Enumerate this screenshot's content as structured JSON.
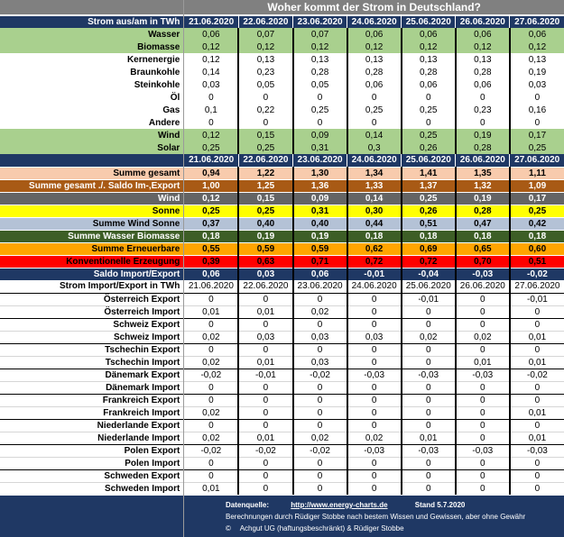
{
  "chart_data": {
    "type": "table",
    "title": "Woher kommt der Strom in Deutschland?",
    "columns": [
      "21.06.2020",
      "22.06.2020",
      "23.06.2020",
      "24.06.2020",
      "25.06.2020",
      "26.06.2020",
      "27.06.2020"
    ],
    "production": {
      "header_label": "Strom aus/am in TWh",
      "rows": [
        {
          "label": "Wasser",
          "style": "green",
          "values": [
            "0,06",
            "0,07",
            "0,07",
            "0,06",
            "0,06",
            "0,06",
            "0,06"
          ]
        },
        {
          "label": "Biomasse",
          "style": "green",
          "values": [
            "0,12",
            "0,12",
            "0,12",
            "0,12",
            "0,12",
            "0,12",
            "0,12"
          ]
        },
        {
          "label": "Kernenergie",
          "style": "white",
          "values": [
            "0,12",
            "0,13",
            "0,13",
            "0,13",
            "0,13",
            "0,13",
            "0,13"
          ]
        },
        {
          "label": "Braunkohle",
          "style": "white",
          "values": [
            "0,14",
            "0,23",
            "0,28",
            "0,28",
            "0,28",
            "0,28",
            "0,19"
          ]
        },
        {
          "label": "Steinkohle",
          "style": "white",
          "values": [
            "0,03",
            "0,05",
            "0,05",
            "0,06",
            "0,06",
            "0,06",
            "0,03"
          ]
        },
        {
          "label": "Öl",
          "style": "white",
          "values": [
            "0",
            "0",
            "0",
            "0",
            "0",
            "0",
            "0"
          ]
        },
        {
          "label": "Gas",
          "style": "white",
          "values": [
            "0,1",
            "0,22",
            "0,25",
            "0,25",
            "0,25",
            "0,23",
            "0,16"
          ]
        },
        {
          "label": "Andere",
          "style": "white",
          "values": [
            "0",
            "0",
            "0",
            "0",
            "0",
            "0",
            "0"
          ]
        },
        {
          "label": "Wind",
          "style": "green",
          "values": [
            "0,12",
            "0,15",
            "0,09",
            "0,14",
            "0,25",
            "0,19",
            "0,17"
          ]
        },
        {
          "label": "Solar",
          "style": "green",
          "values": [
            "0,25",
            "0,25",
            "0,31",
            "0,3",
            "0,26",
            "0,28",
            "0,25"
          ]
        }
      ]
    },
    "summary": {
      "rows": [
        {
          "label": "Summe gesamt",
          "style": "peach",
          "values": [
            "0,94",
            "1,22",
            "1,30",
            "1,34",
            "1,41",
            "1,35",
            "1,11"
          ]
        },
        {
          "label": "Summe gesamt ./. Saldo Im-,Export",
          "style": "brown",
          "values": [
            "1,00",
            "1,25",
            "1,36",
            "1,33",
            "1,37",
            "1,32",
            "1,09"
          ]
        },
        {
          "label": "Wind",
          "style": "dgray",
          "values": [
            "0,12",
            "0,15",
            "0,09",
            "0,14",
            "0,25",
            "0,19",
            "0,17"
          ]
        },
        {
          "label": "Sonne",
          "style": "yellow",
          "values": [
            "0,25",
            "0,25",
            "0,31",
            "0,30",
            "0,26",
            "0,28",
            "0,25"
          ]
        },
        {
          "label": "Summe Wind Sonne",
          "style": "steel",
          "values": [
            "0,37",
            "0,40",
            "0,40",
            "0,44",
            "0,51",
            "0,47",
            "0,42"
          ]
        },
        {
          "label": "Summe Wasser Biomasse",
          "style": "dkgreen",
          "values": [
            "0,18",
            "0,19",
            "0,19",
            "0,18",
            "0,18",
            "0,18",
            "0,18"
          ]
        },
        {
          "label": "Summe Erneuerbare",
          "style": "orange",
          "values": [
            "0,55",
            "0,59",
            "0,59",
            "0,62",
            "0,69",
            "0,65",
            "0,60"
          ]
        },
        {
          "label": "Konventionelle Erzeugung",
          "style": "red",
          "values": [
            "0,39",
            "0,63",
            "0,71",
            "0,72",
            "0,72",
            "0,70",
            "0,51"
          ]
        },
        {
          "label": "Saldo Import/Export",
          "style": "navy",
          "values": [
            "0,06",
            "0,03",
            "0,06",
            "-0,01",
            "-0,04",
            "-0,03",
            "-0,02"
          ]
        }
      ]
    },
    "imports": {
      "header_label": "Strom Import/Export in TWh",
      "rows": [
        {
          "label": "Österreich Export",
          "group_start": true,
          "values": [
            "0",
            "0",
            "0",
            "0",
            "-0,01",
            "0",
            "-0,01"
          ]
        },
        {
          "label": "Österreich Import",
          "group_start": false,
          "values": [
            "0,01",
            "0,01",
            "0,02",
            "0",
            "0",
            "0",
            "0"
          ]
        },
        {
          "label": "Schweiz Export",
          "group_start": true,
          "values": [
            "0",
            "0",
            "0",
            "0",
            "0",
            "0",
            "0"
          ]
        },
        {
          "label": "Schweiz Import",
          "group_start": false,
          "values": [
            "0,02",
            "0,03",
            "0,03",
            "0,03",
            "0,02",
            "0,02",
            "0,01"
          ]
        },
        {
          "label": "Tschechin Export",
          "group_start": true,
          "values": [
            "0",
            "0",
            "0",
            "0",
            "0",
            "0",
            "0"
          ]
        },
        {
          "label": "Tschechin Import",
          "group_start": false,
          "values": [
            "0,02",
            "0,01",
            "0,03",
            "0",
            "0",
            "0,01",
            "0,01"
          ]
        },
        {
          "label": "Dänemark Export",
          "group_start": true,
          "values": [
            "-0,02",
            "-0,01",
            "-0,02",
            "-0,03",
            "-0,03",
            "-0,03",
            "-0,02"
          ]
        },
        {
          "label": "Dänemark Import",
          "group_start": false,
          "values": [
            "0",
            "0",
            "0",
            "0",
            "0",
            "0",
            "0"
          ]
        },
        {
          "label": "Frankreich Export",
          "group_start": true,
          "values": [
            "0",
            "0",
            "0",
            "0",
            "0",
            "0",
            "0"
          ]
        },
        {
          "label": "Frankreich Import",
          "group_start": false,
          "values": [
            "0,02",
            "0",
            "0",
            "0",
            "0",
            "0",
            "0,01"
          ]
        },
        {
          "label": "Niederlande Export",
          "group_start": true,
          "values": [
            "0",
            "0",
            "0",
            "0",
            "0",
            "0",
            "0"
          ]
        },
        {
          "label": "Niederlande Import",
          "group_start": false,
          "values": [
            "0,02",
            "0,01",
            "0,02",
            "0,02",
            "0,01",
            "0",
            "0,01"
          ]
        },
        {
          "label": "Polen  Export",
          "group_start": true,
          "values": [
            "-0,02",
            "-0,02",
            "-0,02",
            "-0,03",
            "-0,03",
            "-0,03",
            "-0,03"
          ]
        },
        {
          "label": "Polen Import",
          "group_start": false,
          "values": [
            "0",
            "0",
            "0",
            "0",
            "0",
            "0",
            "0"
          ]
        },
        {
          "label": "Schweden Export",
          "group_start": true,
          "values": [
            "0",
            "0",
            "0",
            "0",
            "0",
            "0",
            "0"
          ]
        },
        {
          "label": "Schweden Import",
          "group_start": false,
          "values": [
            "0,01",
            "0",
            "0",
            "0",
            "0",
            "0",
            "0"
          ]
        }
      ]
    }
  },
  "footer": {
    "source_label": "Datenquelle:",
    "source_link": "http://www.energy-charts.de",
    "stand": "Stand 5.7.2020",
    "line2": "Berechnungen durch Rüdiger Stobbe nach bestem Wissen und Gewissen, aber ohne Gewähr",
    "copyright_symbol": "©",
    "line3": "Achgut UG (haftungsbeschränkt) & Rüdiger Stobbe"
  },
  "colors": {
    "title_bar": "#808080",
    "header_navy": "#1F3864",
    "renewable_green": "#A9D08E",
    "sum_peach": "#F8CBAD",
    "sum_brown": "#A85A15",
    "wind_gray": "#646464",
    "sun_yellow": "#FFFF00",
    "wind_sun_steel": "#B4C2D6",
    "water_bio_green": "#3D5E26",
    "renewable_orange": "#FFA500",
    "conventional_red": "#FF0000",
    "footer_navy": "#1F3864"
  }
}
